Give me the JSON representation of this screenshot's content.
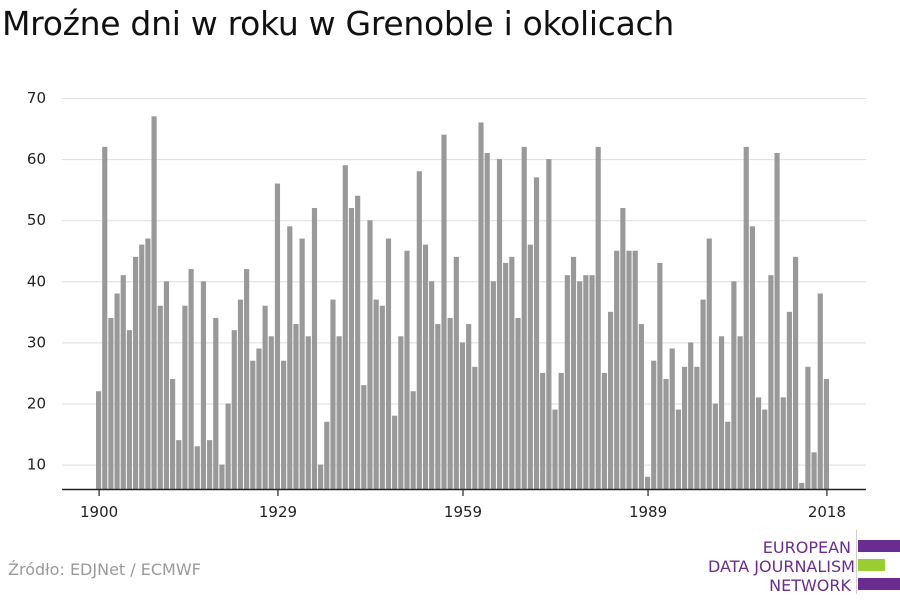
{
  "title": "Mroźne dni w roku w Grenoble i okolicach",
  "source": "Źródło: EDJNet / ECMWF",
  "logo": {
    "lines": [
      "EUROPEAN",
      "DATA JOURNALISM",
      "NETWORK"
    ],
    "colors": {
      "purple": "#6a2c91",
      "green": "#9acd32"
    }
  },
  "colors": {
    "bar": "#999999",
    "grid": "#dddddd",
    "axis": "#222222",
    "text": "#222222"
  },
  "chart_data": {
    "type": "bar",
    "title": "Mroźne dni w roku w Grenoble i okolicach",
    "xlabel": "",
    "ylabel": "",
    "ylim": [
      6,
      70
    ],
    "yticks": [
      10,
      20,
      30,
      40,
      50,
      60,
      70
    ],
    "xticks": [
      1900,
      1929,
      1959,
      1989,
      2018
    ],
    "grid": true,
    "x": [
      1900,
      1901,
      1902,
      1903,
      1904,
      1905,
      1906,
      1907,
      1908,
      1909,
      1910,
      1911,
      1912,
      1913,
      1914,
      1915,
      1916,
      1917,
      1918,
      1919,
      1920,
      1921,
      1922,
      1923,
      1924,
      1925,
      1926,
      1927,
      1928,
      1929,
      1930,
      1931,
      1932,
      1933,
      1934,
      1935,
      1936,
      1937,
      1938,
      1939,
      1940,
      1941,
      1942,
      1943,
      1944,
      1945,
      1946,
      1947,
      1948,
      1949,
      1950,
      1951,
      1952,
      1953,
      1954,
      1955,
      1956,
      1957,
      1958,
      1959,
      1960,
      1961,
      1962,
      1963,
      1964,
      1965,
      1966,
      1967,
      1968,
      1969,
      1970,
      1971,
      1972,
      1973,
      1974,
      1975,
      1976,
      1977,
      1978,
      1979,
      1980,
      1981,
      1982,
      1983,
      1984,
      1985,
      1986,
      1987,
      1988,
      1989,
      1990,
      1991,
      1992,
      1993,
      1994,
      1995,
      1996,
      1997,
      1998,
      1999,
      2000,
      2001,
      2002,
      2003,
      2004,
      2005,
      2006,
      2007,
      2008,
      2009,
      2010,
      2011,
      2012,
      2013,
      2014,
      2015,
      2016,
      2017,
      2018
    ],
    "values": [
      22,
      62,
      34,
      38,
      41,
      32,
      44,
      46,
      47,
      67,
      36,
      40,
      24,
      14,
      36,
      42,
      13,
      40,
      14,
      34,
      10,
      20,
      32,
      37,
      42,
      27,
      29,
      36,
      31,
      56,
      27,
      49,
      33,
      47,
      31,
      52,
      10,
      17,
      37,
      31,
      59,
      52,
      54,
      23,
      50,
      37,
      36,
      47,
      18,
      31,
      45,
      22,
      58,
      46,
      40,
      33,
      64,
      34,
      44,
      30,
      33,
      26,
      66,
      61,
      40,
      60,
      43,
      44,
      34,
      62,
      46,
      57,
      25,
      60,
      19,
      25,
      41,
      44,
      40,
      41,
      41,
      62,
      25,
      35,
      45,
      52,
      45,
      45,
      33,
      8,
      27,
      43,
      24,
      29,
      19,
      26,
      30,
      26,
      37,
      47,
      20,
      31,
      17,
      40,
      31,
      62,
      49,
      21,
      19,
      41,
      61,
      21,
      35,
      44,
      7,
      26,
      12,
      38,
      24
    ]
  }
}
